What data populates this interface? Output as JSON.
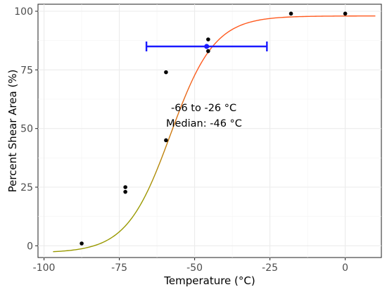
{
  "chart_data": {
    "type": "scatter",
    "title": "",
    "xlabel": "Temperature (°C)",
    "ylabel": "Percent Shear Area (%)",
    "xlim": [
      -102,
      12
    ],
    "ylim": [
      -5,
      103
    ],
    "x_ticks": [
      -100,
      -75,
      -50,
      -25,
      0
    ],
    "y_ticks": [
      0,
      25,
      50,
      75,
      100
    ],
    "x_tick_labels": [
      "-100",
      "-75",
      "-50",
      "-25",
      "0"
    ],
    "y_tick_labels": [
      "0",
      "25",
      "50",
      "75",
      "100"
    ],
    "grid": true,
    "legend": "none",
    "points": [
      {
        "x": -87.5,
        "y": 1
      },
      {
        "x": -73,
        "y": 25
      },
      {
        "x": -73,
        "y": 23
      },
      {
        "x": -59.5,
        "y": 74
      },
      {
        "x": -59.5,
        "y": 45
      },
      {
        "x": -45.5,
        "y": 88
      },
      {
        "x": -45.5,
        "y": 83
      },
      {
        "x": -18,
        "y": 99
      },
      {
        "x": 0,
        "y": 99
      }
    ],
    "fit_curve": {
      "model": "logistic",
      "lower": -3,
      "upper": 98,
      "midpoint": -58,
      "scale": 7.3,
      "x_range": [
        -97,
        10
      ],
      "color_low": "#999900",
      "color_high": "#ff5a1f"
    },
    "error_bar": {
      "y": 85,
      "x_min": -66,
      "x_max": -26,
      "x_center": -46,
      "color": "#1a1aff"
    },
    "annotations": [
      "-66 to -26 °C",
      "Median: -46 °C"
    ],
    "point_color": "#000000"
  }
}
